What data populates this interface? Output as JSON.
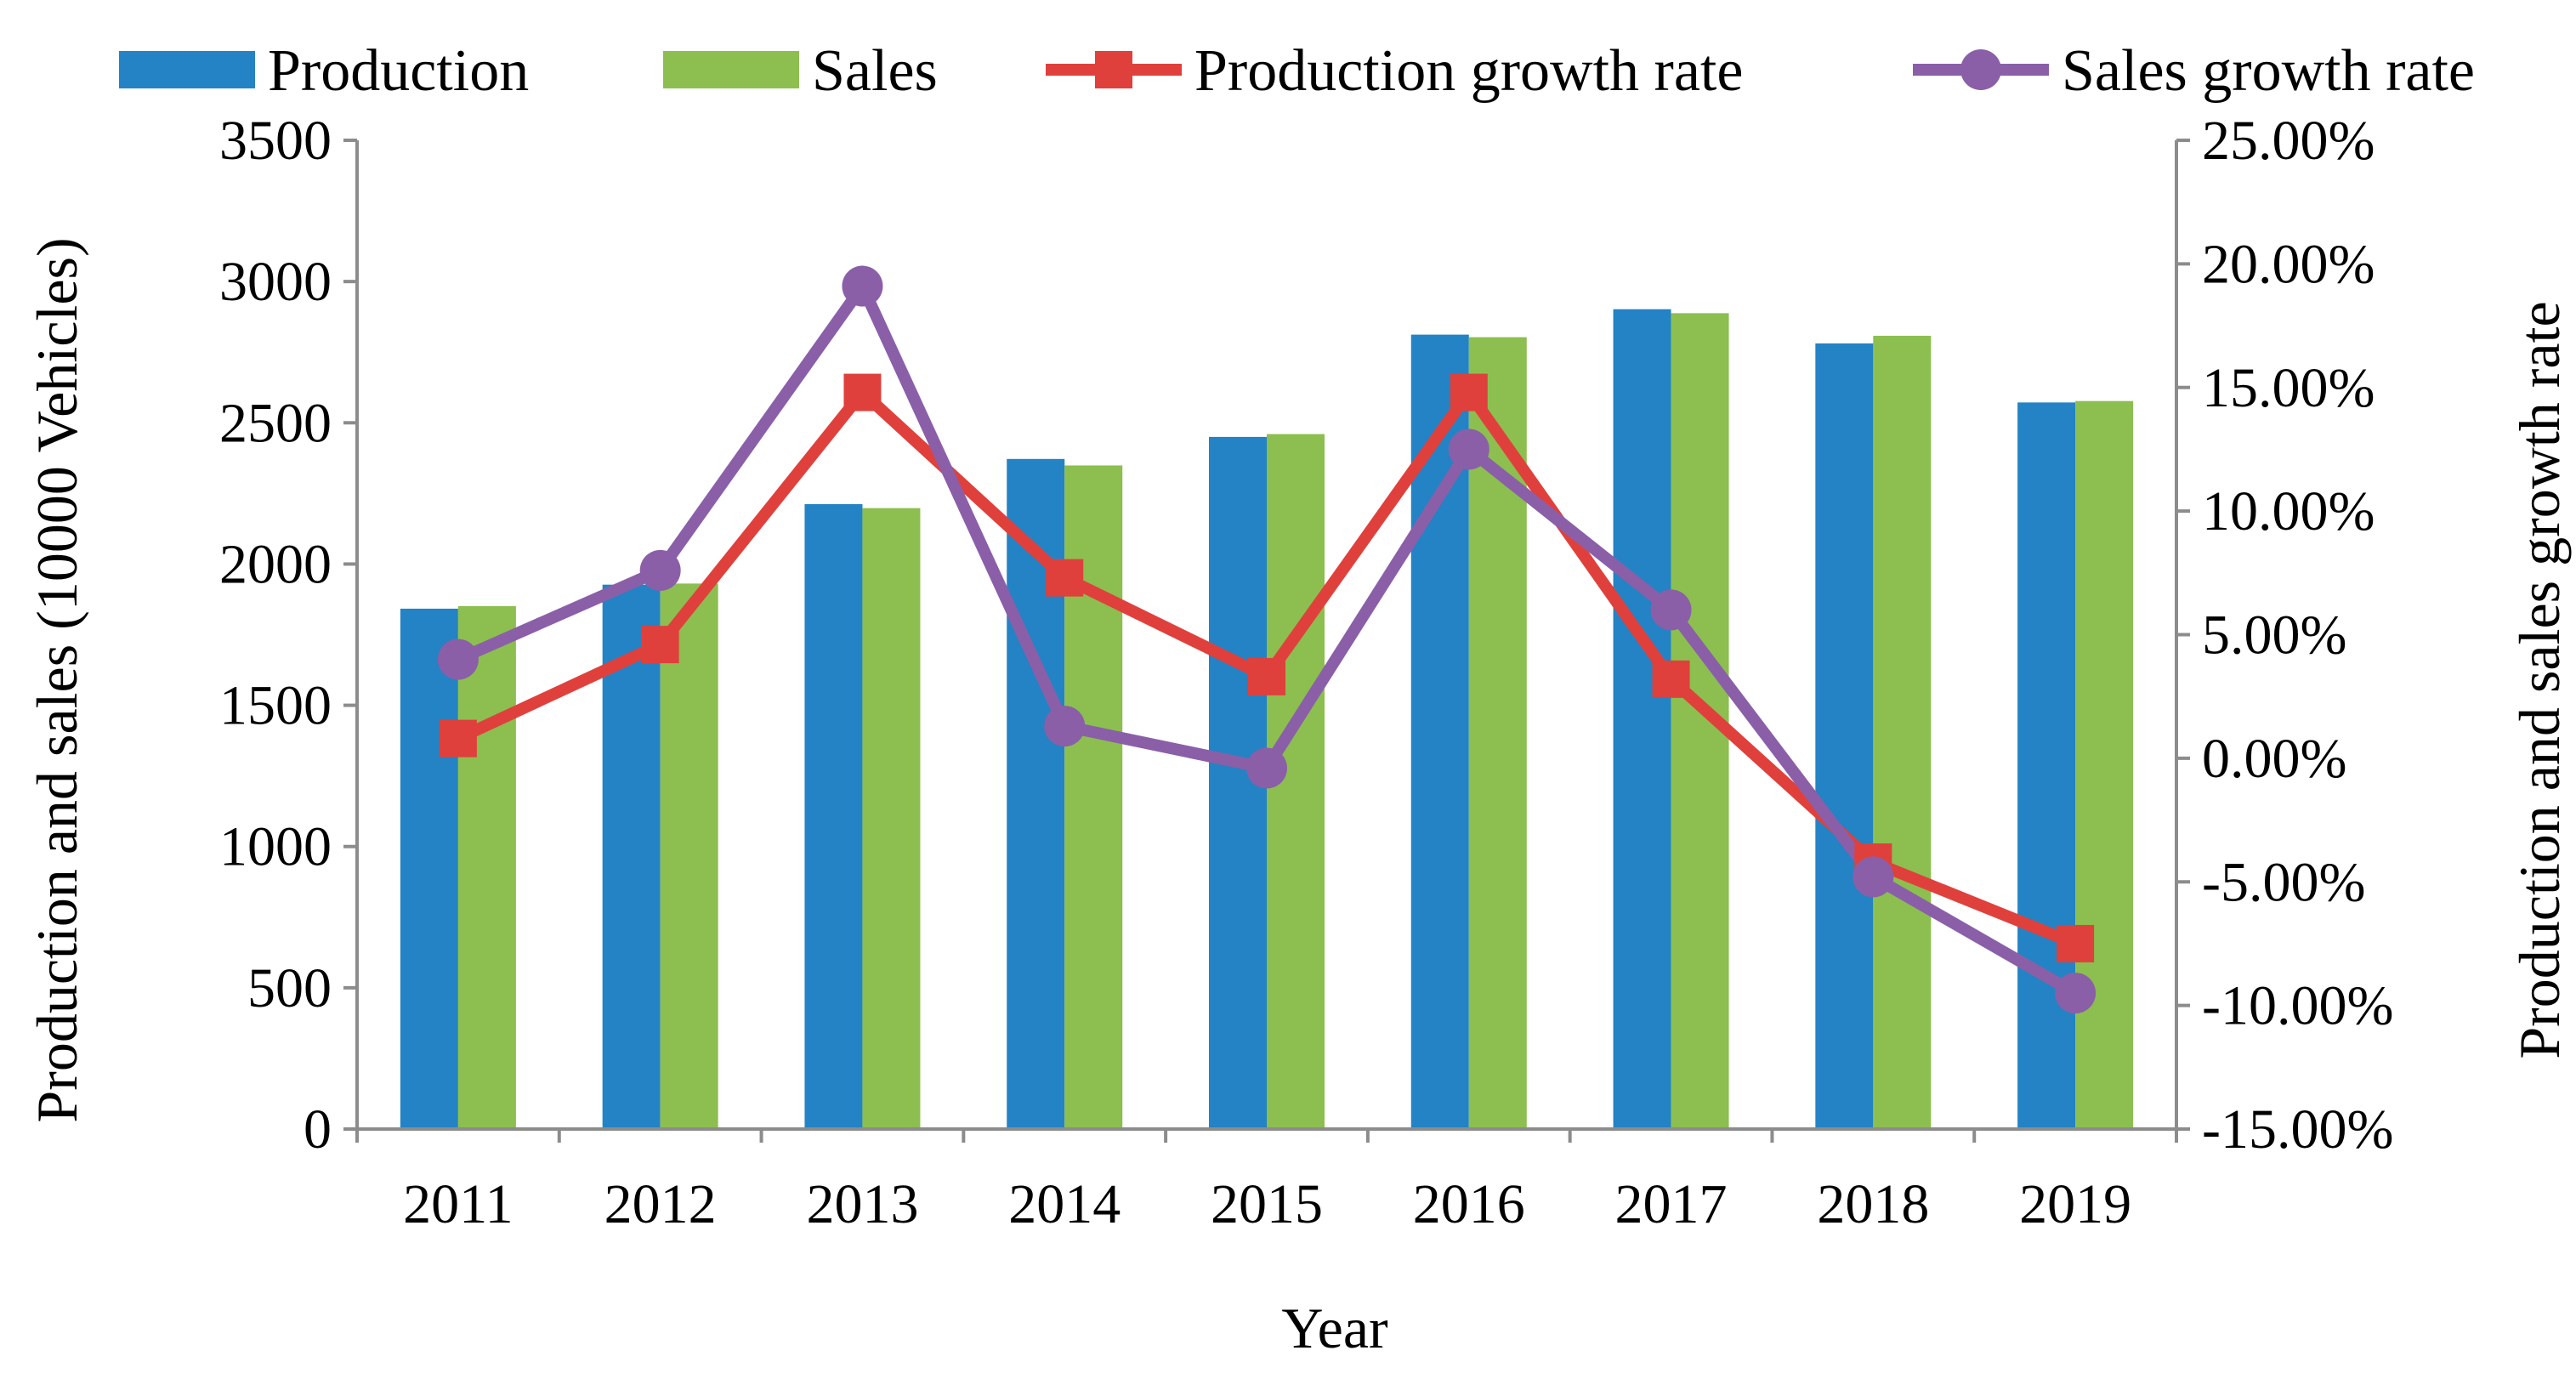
{
  "chart_data": {
    "type": "bar",
    "categories": [
      "2011",
      "2012",
      "2013",
      "2014",
      "2015",
      "2016",
      "2017",
      "2018",
      "2019"
    ],
    "series": [
      {
        "name": "Production",
        "type": "bar",
        "axis": "left",
        "color": "#2383C4",
        "values": [
          1842,
          1927,
          2212,
          2372,
          2450,
          2812,
          2902,
          2781,
          2572
        ]
      },
      {
        "name": "Sales",
        "type": "bar",
        "axis": "left",
        "color": "#8CBF4F",
        "values": [
          1851,
          1931,
          2198,
          2349,
          2460,
          2803,
          2888,
          2808,
          2577
        ]
      },
      {
        "name": "Production growth rate",
        "type": "line",
        "axis": "right",
        "color": "#E0403C",
        "marker": "square",
        "values": [
          0.8,
          4.6,
          14.8,
          7.3,
          3.3,
          14.8,
          3.2,
          -4.2,
          -7.5
        ]
      },
      {
        "name": "Sales growth rate",
        "type": "line",
        "axis": "right",
        "color": "#8A5FA8",
        "marker": "circle",
        "values": [
          4.0,
          7.6,
          19.1,
          1.3,
          -0.4,
          12.5,
          6.0,
          -4.8,
          -9.5
        ]
      }
    ],
    "xlabel": "Year",
    "ylabel": "Production and sales (10000 Vehicles)",
    "y2label": "Production and sales growth rate",
    "ylim": [
      0,
      3500
    ],
    "y2lim": [
      -15,
      25
    ],
    "yticks": [
      "0",
      "500",
      "1000",
      "1500",
      "2000",
      "2500",
      "3000",
      "3500"
    ],
    "y2ticks": [
      "-15.00%",
      "-10.00%",
      "-5.00%",
      "0.00%",
      "5.00%",
      "10.00%",
      "15.00%",
      "20.00%",
      "25.00%"
    ],
    "grid": false,
    "legend_position": "top"
  }
}
